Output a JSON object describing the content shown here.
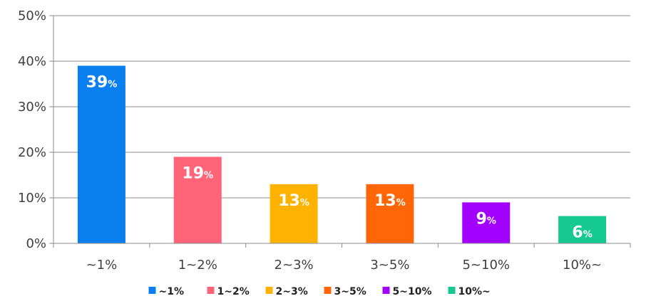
{
  "chart_data": {
    "type": "bar",
    "categories": [
      "~1%",
      "1~2%",
      "2~3%",
      "3~5%",
      "5~10%",
      "10%~"
    ],
    "values": [
      39,
      19,
      13,
      13,
      9,
      6
    ],
    "data_labels": [
      "39",
      "19",
      "13",
      "13",
      "9",
      "6"
    ],
    "data_label_unit": "%",
    "colors": [
      "#0a7ff0",
      "#ff6479",
      "#ffb300",
      "#ff6608",
      "#a200ff",
      "#16c98e"
    ],
    "ylim": [
      0,
      50
    ],
    "yticks": [
      0,
      10,
      20,
      30,
      40,
      50
    ],
    "ytick_labels": [
      "0%",
      "10%",
      "20%",
      "30%",
      "40%",
      "50%"
    ],
    "grid": true,
    "legend": {
      "placement": "bottom",
      "entries": [
        "~1%",
        "1~2%",
        "2~3%",
        "3~5%",
        "5~10%",
        "10%~"
      ]
    },
    "title": "",
    "xlabel": "",
    "ylabel": ""
  }
}
